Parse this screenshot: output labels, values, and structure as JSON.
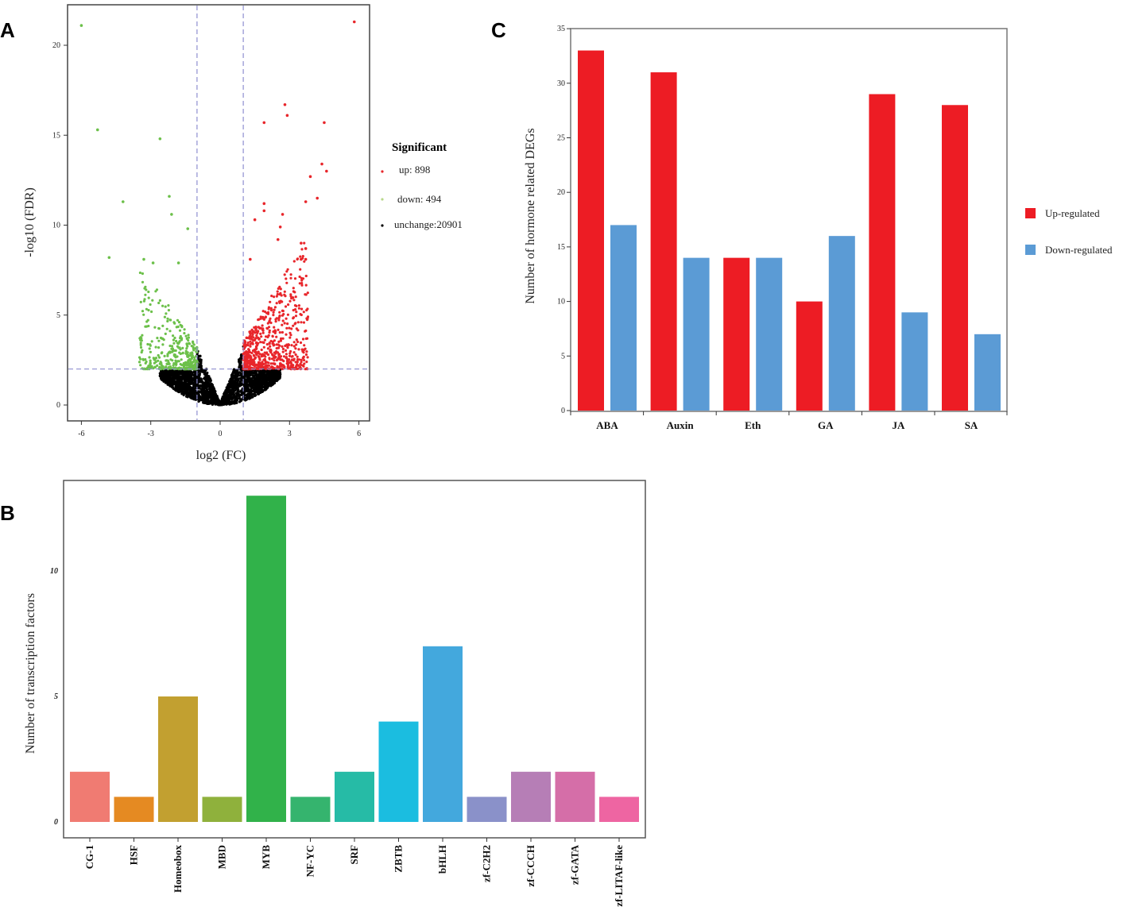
{
  "panels": {
    "a": "A",
    "b": "B",
    "c": "C"
  },
  "chart_data": [
    {
      "type": "scatter",
      "panel": "A",
      "title": "",
      "xlabel": "log2 (FC)",
      "ylabel": "-log10 (FDR)",
      "xlim": [
        -6.5,
        6.5
      ],
      "ylim": [
        -0.9,
        22.3
      ],
      "xticks": [
        -6,
        -3,
        0,
        3,
        6
      ],
      "yticks": [
        0,
        5,
        10,
        15,
        20
      ],
      "thresholds": {
        "log2fc": [
          -1,
          1
        ],
        "neg_log10_fdr": 2
      },
      "legend": {
        "title": "Significant",
        "placement": "right",
        "entries": [
          {
            "label": "up: 898",
            "color": "#e8262b"
          },
          {
            "label": "down: 494",
            "color": "#6cc04a"
          },
          {
            "label": "unchange:20901",
            "color": "#000000"
          }
        ]
      },
      "counts": {
        "up": 898,
        "down": 494,
        "unchange": 20901
      },
      "outliers_down": [
        [
          -6,
          21.1
        ],
        [
          -5.3,
          15.3
        ],
        [
          -4.2,
          11.3
        ],
        [
          -4.8,
          8.2
        ],
        [
          -2.6,
          14.8
        ],
        [
          -2.2,
          11.6
        ],
        [
          -2.1,
          10.6
        ],
        [
          -1.4,
          9.8
        ],
        [
          -3.3,
          8.1
        ],
        [
          -2.9,
          7.9
        ],
        [
          -1.8,
          7.9
        ]
      ],
      "outliers_up": [
        [
          5.8,
          21.3
        ],
        [
          2.8,
          16.7
        ],
        [
          2.9,
          16.1
        ],
        [
          1.9,
          15.7
        ],
        [
          4.5,
          15.7
        ],
        [
          4.4,
          13.4
        ],
        [
          4.6,
          13
        ],
        [
          3.9,
          12.7
        ],
        [
          4.2,
          11.5
        ],
        [
          3.7,
          11.3
        ],
        [
          1.9,
          11.2
        ],
        [
          1.9,
          10.8
        ],
        [
          1.5,
          10.3
        ],
        [
          2.7,
          10.6
        ],
        [
          2.6,
          9.9
        ],
        [
          2.5,
          9.2
        ],
        [
          3.5,
          9
        ],
        [
          3.7,
          8.7
        ],
        [
          1.3,
          8.1
        ],
        [
          3.5,
          8.1
        ],
        [
          3.7,
          8.1
        ]
      ]
    },
    {
      "type": "bar",
      "panel": "B",
      "title": "",
      "xlabel": "",
      "ylabel": "Number of  transcription factors",
      "ylim": [
        -0.6,
        13.3
      ],
      "yticks": [
        0,
        5,
        10
      ],
      "categories": [
        "CG-1",
        "HSF",
        "Homeobox",
        "MBD",
        "MYB",
        "NF-YC",
        "SRF",
        "ZBTB",
        "bHLH",
        "zf-C2H2",
        "zf-CCCH",
        "zf-GATA",
        "zf-LITAF-like"
      ],
      "values": [
        2,
        1,
        5,
        1,
        13,
        1,
        2,
        4,
        7,
        1,
        2,
        2,
        1
      ],
      "colors": [
        "#f07b72",
        "#e58a22",
        "#c2a030",
        "#8fb13c",
        "#31b24a",
        "#35b46e",
        "#26bba6",
        "#1bbde0",
        "#43a8dd",
        "#8a91c9",
        "#b67eb6",
        "#d56ea8",
        "#ee65a2"
      ]
    },
    {
      "type": "bar",
      "panel": "C",
      "title": "",
      "xlabel": "",
      "ylabel": "Number of  hormone related DEGs",
      "ylim": [
        0,
        35
      ],
      "yticks": [
        0,
        5,
        10,
        15,
        20,
        25,
        30,
        35
      ],
      "categories": [
        "ABA",
        "Auxin",
        "Eth",
        "GA",
        "JA",
        "SA"
      ],
      "series": [
        {
          "name": "Up-regulated",
          "color": "#ed1c24",
          "values": [
            33,
            31,
            14,
            10,
            29,
            28
          ]
        },
        {
          "name": "Down-regulated",
          "color": "#5b9bd5",
          "values": [
            17,
            14,
            14,
            16,
            9,
            7
          ]
        }
      ],
      "legend": {
        "placement": "right"
      }
    }
  ]
}
